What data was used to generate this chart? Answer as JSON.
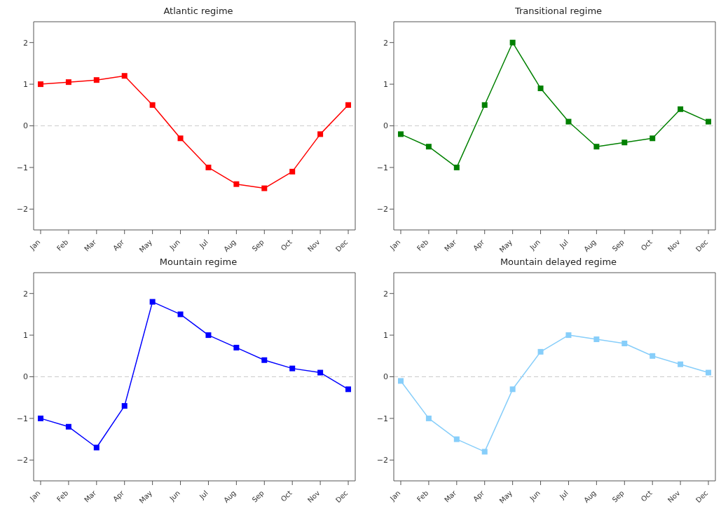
{
  "chart_data": [
    {
      "type": "line",
      "title": "Atlantic regime",
      "categories": [
        "Jan",
        "Feb",
        "Mar",
        "Apr",
        "May",
        "Jun",
        "Jul",
        "Aug",
        "Sep",
        "Oct",
        "Nov",
        "Dec"
      ],
      "series": [
        {
          "color": "#ff0000",
          "values": [
            1.0,
            1.05,
            1.1,
            1.2,
            0.5,
            -0.3,
            -1.0,
            -1.4,
            -1.5,
            -1.1,
            -0.2,
            0.5
          ]
        }
      ],
      "ylim": [
        -2.5,
        2.5
      ],
      "yticks": [
        -2,
        -1,
        0,
        1,
        2
      ],
      "ref_lines": [
        {
          "axis": "y",
          "value": 0,
          "color": "#cccccc",
          "line_style": "dashed"
        }
      ],
      "marker": "square",
      "line_style": "solid",
      "grid": false,
      "legend": false
    },
    {
      "type": "line",
      "title": "Transitional regime",
      "categories": [
        "Jan",
        "Feb",
        "Mar",
        "Apr",
        "May",
        "Jun",
        "Jul",
        "Aug",
        "Sep",
        "Oct",
        "Nov",
        "Dec"
      ],
      "series": [
        {
          "color": "#008000",
          "values": [
            -0.2,
            -0.5,
            -1.0,
            0.5,
            2.0,
            0.9,
            0.1,
            -0.5,
            -0.4,
            -0.3,
            0.4,
            0.1
          ]
        }
      ],
      "ylim": [
        -2.5,
        2.5
      ],
      "yticks": [
        -2,
        -1,
        0,
        1,
        2
      ],
      "ref_lines": [
        {
          "axis": "y",
          "value": 0,
          "color": "#cccccc",
          "line_style": "dashed"
        }
      ],
      "marker": "square",
      "line_style": "solid",
      "grid": false,
      "legend": false
    },
    {
      "type": "line",
      "title": "Mountain regime",
      "categories": [
        "Jan",
        "Feb",
        "Mar",
        "Apr",
        "May",
        "Jun",
        "Jul",
        "Aug",
        "Sep",
        "Oct",
        "Nov",
        "Dec"
      ],
      "series": [
        {
          "color": "#0000ff",
          "values": [
            -1.0,
            -1.2,
            -1.7,
            -0.7,
            1.8,
            1.5,
            1.0,
            0.7,
            0.4,
            0.2,
            0.1,
            -0.3
          ]
        }
      ],
      "ylim": [
        -2.5,
        2.5
      ],
      "yticks": [
        -2,
        -1,
        0,
        1,
        2
      ],
      "ref_lines": [
        {
          "axis": "y",
          "value": 0,
          "color": "#cccccc",
          "line_style": "dashed"
        }
      ],
      "marker": "square",
      "line_style": "solid",
      "grid": false,
      "legend": false
    },
    {
      "type": "line",
      "title": "Mountain delayed regime",
      "categories": [
        "Jan",
        "Feb",
        "Mar",
        "Apr",
        "May",
        "Jun",
        "Jul",
        "Aug",
        "Sep",
        "Oct",
        "Nov",
        "Dec"
      ],
      "series": [
        {
          "color": "#87cefa",
          "values": [
            -0.1,
            -1.0,
            -1.5,
            -1.8,
            -0.3,
            0.6,
            1.0,
            0.9,
            0.8,
            0.5,
            0.3,
            0.1
          ]
        }
      ],
      "ylim": [
        -2.5,
        2.5
      ],
      "yticks": [
        -2,
        -1,
        0,
        1,
        2
      ],
      "ref_lines": [
        {
          "axis": "y",
          "value": 0,
          "color": "#cccccc",
          "line_style": "dashed"
        }
      ],
      "marker": "square",
      "line_style": "solid",
      "grid": false,
      "legend": false
    }
  ]
}
